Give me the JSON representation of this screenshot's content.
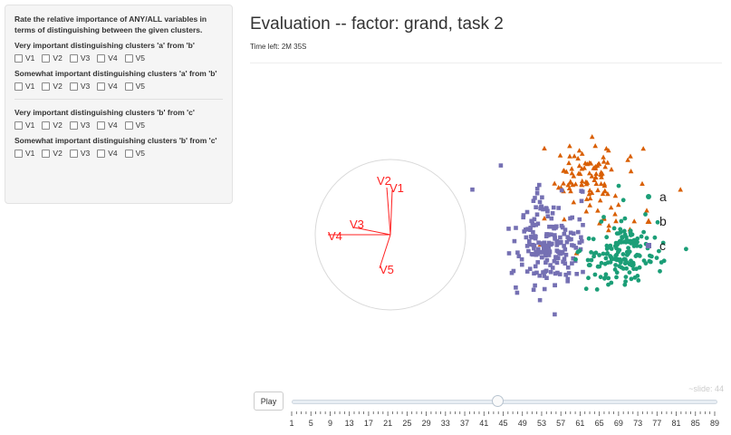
{
  "sidebar": {
    "intro": "Rate the relative importance of ANY/ALL variables in terms of distinguishing between the given clusters.",
    "questions": [
      {
        "label": "Very important distinguishing clusters 'a' from 'b'",
        "options": [
          "V1",
          "V2",
          "V3",
          "V4",
          "V5"
        ]
      },
      {
        "label": "Somewhat important distinguishing clusters 'a' from 'b'",
        "options": [
          "V1",
          "V2",
          "V3",
          "V4",
          "V5"
        ]
      },
      {
        "label": "Very important distinguishing clusters 'b' from 'c'",
        "options": [
          "V1",
          "V2",
          "V3",
          "V4",
          "V5"
        ]
      },
      {
        "label": "Somewhat important distinguishing clusters 'b' from 'c'",
        "options": [
          "V1",
          "V2",
          "V3",
          "V4",
          "V5"
        ]
      }
    ]
  },
  "header": {
    "title": "Evaluation -- factor: grand, task 2",
    "time_left": "Time left: 2M 35S"
  },
  "axes_circle": {
    "variables": [
      "V1",
      "V2",
      "V3",
      "V4",
      "V5"
    ],
    "color": "#ff2020"
  },
  "legend": {
    "items": [
      {
        "label": "a",
        "color": "#1b9e77",
        "marker": "circle"
      },
      {
        "label": "b",
        "color": "#d95f02",
        "marker": "triangle"
      },
      {
        "label": "c",
        "color": "#7570b3",
        "marker": "square"
      }
    ]
  },
  "controls": {
    "play_label": "Play",
    "slide_label": "~slide: 44",
    "slider_value": 44,
    "slider_min": 1,
    "slider_max": 89,
    "tick_labels": [
      "1",
      "5",
      "9",
      "13",
      "17",
      "21",
      "25",
      "29",
      "33",
      "37",
      "41",
      "45",
      "49",
      "53",
      "57",
      "61",
      "65",
      "69",
      "73",
      "77",
      "81",
      "85",
      "89"
    ]
  }
}
